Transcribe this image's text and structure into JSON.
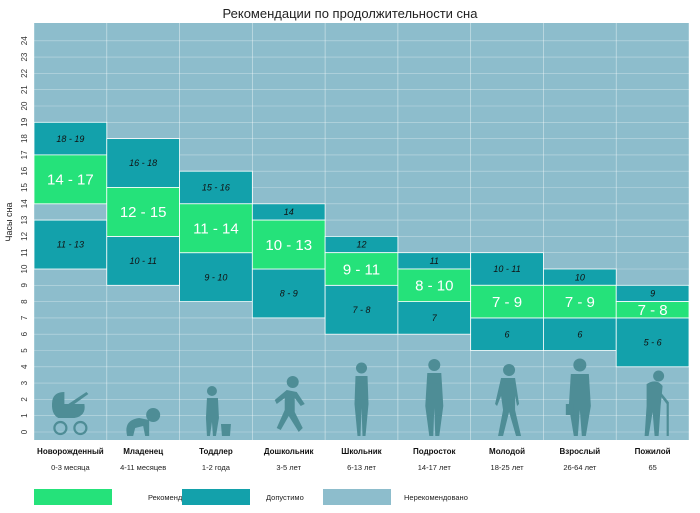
{
  "chart_data": {
    "type": "bar",
    "title": "Рекомендации по продолжительности сна",
    "ylabel": "Часы сна",
    "ylim": [
      0,
      24
    ],
    "yticks": [
      "0",
      "1",
      "2",
      "3",
      "4",
      "5",
      "6",
      "7",
      "8",
      "9",
      "10",
      "11",
      "12",
      "13",
      "14",
      "15",
      "16",
      "17",
      "18",
      "19",
      "20",
      "21",
      "22",
      "23",
      "24"
    ],
    "categories": [
      {
        "name": "Новорожденный",
        "age": "0-3 месяца",
        "icon": "baby-stroller-icon"
      },
      {
        "name": "Младенец",
        "age": "4-11 месяцев",
        "icon": "crawling-baby-icon"
      },
      {
        "name": "Тоддлер",
        "age": "1-2 года",
        "icon": "toddler-with-potty-icon"
      },
      {
        "name": "Дошкольник",
        "age": "3-5 лет",
        "icon": "running-child-icon"
      },
      {
        "name": "Школьник",
        "age": "6-13 лет",
        "icon": "schoolchild-icon"
      },
      {
        "name": "Подросток",
        "age": "14-17 лет",
        "icon": "teenager-icon"
      },
      {
        "name": "Молодой",
        "age": "18-25 лет",
        "icon": "young-adult-icon"
      },
      {
        "name": "Взрослый",
        "age": "26-64 лет",
        "icon": "adult-with-briefcase-icon"
      },
      {
        "name": "Пожилой",
        "age": "65",
        "icon": "elderly-with-cane-icon"
      }
    ],
    "series": [
      {
        "name": "Рекомендовано",
        "ranges": [
          [
            14,
            17
          ],
          [
            12,
            15
          ],
          [
            11,
            14
          ],
          [
            10,
            13
          ],
          [
            9,
            11
          ],
          [
            8,
            10
          ],
          [
            7,
            9
          ],
          [
            7,
            9
          ],
          [
            7,
            8
          ]
        ],
        "labels": [
          "14 - 17",
          "12 - 15",
          "11 - 14",
          "10 - 13",
          "9 - 11",
          "8 - 10",
          "7 - 9",
          "7 - 9",
          "7 - 8"
        ]
      },
      {
        "name": "Допустимо",
        "upper_ranges": [
          [
            17,
            19
          ],
          [
            15,
            18
          ],
          [
            14,
            16
          ],
          [
            13,
            14
          ],
          [
            11,
            12
          ],
          [
            10,
            11
          ],
          [
            9,
            11
          ],
          [
            9,
            10
          ],
          [
            8,
            9
          ]
        ],
        "upper_labels": [
          "18 - 19",
          "16 - 18",
          "15 - 16",
          "14",
          "12",
          "11",
          "10 - 11",
          "10",
          "9"
        ],
        "lower_ranges": [
          [
            10,
            13
          ],
          [
            9,
            12
          ],
          [
            8,
            11
          ],
          [
            7,
            10
          ],
          [
            6,
            9
          ],
          [
            6,
            8
          ],
          [
            5,
            7
          ],
          [
            5,
            7
          ],
          [
            4,
            7
          ]
        ],
        "lower_labels": [
          "11 - 13",
          "10 - 11",
          "9 - 10",
          "8 - 9",
          "7 - 8",
          "7",
          "6",
          "6",
          "5 - 6"
        ]
      }
    ],
    "legend": {
      "position": "bottom",
      "items": [
        {
          "label": "Рекомендовано",
          "color": "#25e27a"
        },
        {
          "label": "Допустимо",
          "color": "#13a1ab"
        },
        {
          "label": "Нерекомендовано",
          "color": "#8dbdcc"
        }
      ]
    },
    "grid": true,
    "colors": {
      "recommended": "#25e27a",
      "acceptable": "#13a1ab",
      "not_recommended": "#8dbdcc",
      "icon": "#4e8d96"
    }
  }
}
